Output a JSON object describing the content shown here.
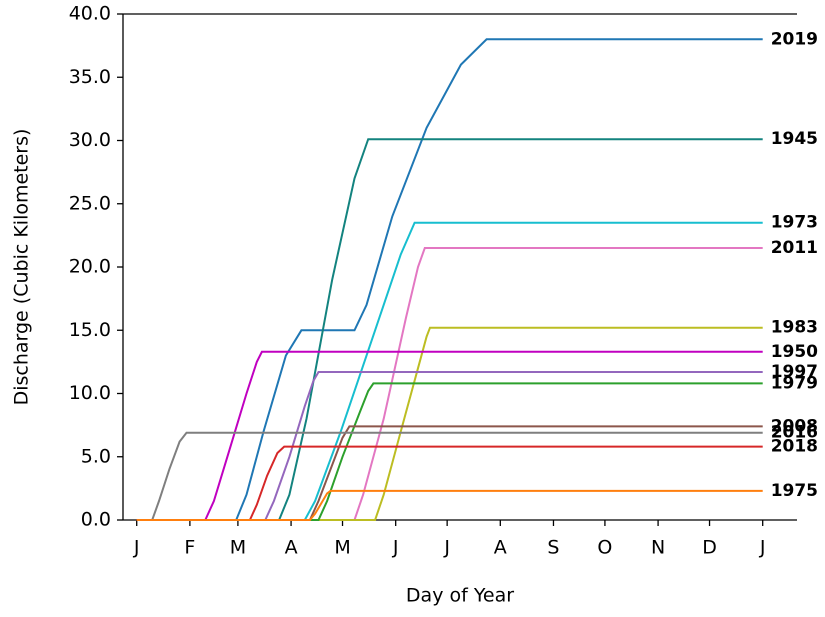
{
  "chart_data": {
    "type": "line",
    "x_label": "Day of Year",
    "y_label": "Discharge (Cubic Kilometers)",
    "xlim": [
      -7,
      386
    ],
    "ylim": [
      0,
      40
    ],
    "xticks": [
      {
        "value": 1,
        "label": "J"
      },
      {
        "value": 32,
        "label": "F"
      },
      {
        "value": 60,
        "label": "M"
      },
      {
        "value": 91,
        "label": "A"
      },
      {
        "value": 121,
        "label": "M"
      },
      {
        "value": 152,
        "label": "J"
      },
      {
        "value": 182,
        "label": "J"
      },
      {
        "value": 213,
        "label": "A"
      },
      {
        "value": 244,
        "label": "S"
      },
      {
        "value": 274,
        "label": "O"
      },
      {
        "value": 305,
        "label": "N"
      },
      {
        "value": 335,
        "label": "D"
      },
      {
        "value": 366,
        "label": "J"
      }
    ],
    "yticks": [
      {
        "value": 0,
        "label": "0.0"
      },
      {
        "value": 5,
        "label": "5.0"
      },
      {
        "value": 10,
        "label": "10.0"
      },
      {
        "value": 15,
        "label": "15.0"
      },
      {
        "value": 20,
        "label": "20.0"
      },
      {
        "value": 25,
        "label": "25.0"
      },
      {
        "value": 30,
        "label": "30.0"
      },
      {
        "value": 35,
        "label": "35.0"
      },
      {
        "value": 40,
        "label": "40.0"
      }
    ],
    "series": [
      {
        "name": "2019",
        "color": "#1f77b4",
        "x": [
          1,
          59,
          65,
          75,
          88,
          97,
          128,
          135,
          150,
          170,
          190,
          205,
          366
        ],
        "values": [
          0,
          0,
          2,
          7,
          13,
          15,
          15,
          17,
          24,
          31,
          36,
          38,
          38
        ]
      },
      {
        "name": "1945",
        "color": "#13837f",
        "x": [
          1,
          84,
          90,
          100,
          115,
          128,
          136,
          366
        ],
        "values": [
          0,
          0,
          2,
          8,
          19,
          27,
          30.1,
          30.1
        ]
      },
      {
        "name": "1973",
        "color": "#17becf",
        "x": [
          1,
          99,
          105,
          120,
          140,
          155,
          163,
          366
        ],
        "values": [
          0,
          0,
          1.5,
          7,
          15,
          21,
          23.5,
          23.5
        ]
      },
      {
        "name": "2011",
        "color": "#e377c2",
        "x": [
          1,
          128,
          133,
          145,
          158,
          165,
          169,
          366
        ],
        "values": [
          0,
          0,
          2,
          8,
          16,
          20,
          21.5,
          21.5
        ]
      },
      {
        "name": "1983",
        "color": "#bcbd22",
        "x": [
          1,
          140,
          145,
          155,
          165,
          170,
          172,
          366
        ],
        "values": [
          0,
          0,
          2,
          7,
          12,
          14.5,
          15.2,
          15.2
        ]
      },
      {
        "name": "1950",
        "color": "#c000c0",
        "x": [
          1,
          41,
          46,
          55,
          65,
          71,
          74,
          366
        ],
        "values": [
          0,
          0,
          1.5,
          5.5,
          10,
          12.5,
          13.3,
          13.3
        ]
      },
      {
        "name": "1997",
        "color": "#9467bd",
        "x": [
          1,
          76,
          81,
          90,
          99,
          104,
          107,
          366
        ],
        "values": [
          0,
          0,
          1.5,
          5,
          9,
          11,
          11.7,
          11.7
        ]
      },
      {
        "name": "1979",
        "color": "#2ca02c",
        "x": [
          1,
          107,
          112,
          121,
          131,
          136,
          139,
          366
        ],
        "values": [
          0,
          0,
          1.5,
          5,
          8.5,
          10.2,
          10.8,
          10.8
        ]
      },
      {
        "name": "2008",
        "color": "#8c564b",
        "x": [
          1,
          102,
          107,
          114,
          121,
          125,
          366
        ],
        "values": [
          0,
          0,
          1.5,
          4,
          6.5,
          7.4,
          7.4
        ]
      },
      {
        "name": "2016",
        "color": "#7f7f7f",
        "x": [
          1,
          10,
          14,
          20,
          26,
          30,
          366
        ],
        "values": [
          0,
          0,
          1.5,
          4,
          6.2,
          6.9,
          6.9
        ]
      },
      {
        "name": "2018",
        "color": "#d62728",
        "x": [
          1,
          67,
          71,
          77,
          83,
          87,
          366
        ],
        "values": [
          0,
          0,
          1.2,
          3.5,
          5.3,
          5.8,
          5.8
        ]
      },
      {
        "name": "1975",
        "color": "#ff7f0e",
        "x": [
          1,
          102,
          105,
          109,
          112,
          114,
          366
        ],
        "values": [
          0,
          0,
          0.5,
          1.4,
          2.1,
          2.3,
          2.3
        ]
      }
    ]
  }
}
